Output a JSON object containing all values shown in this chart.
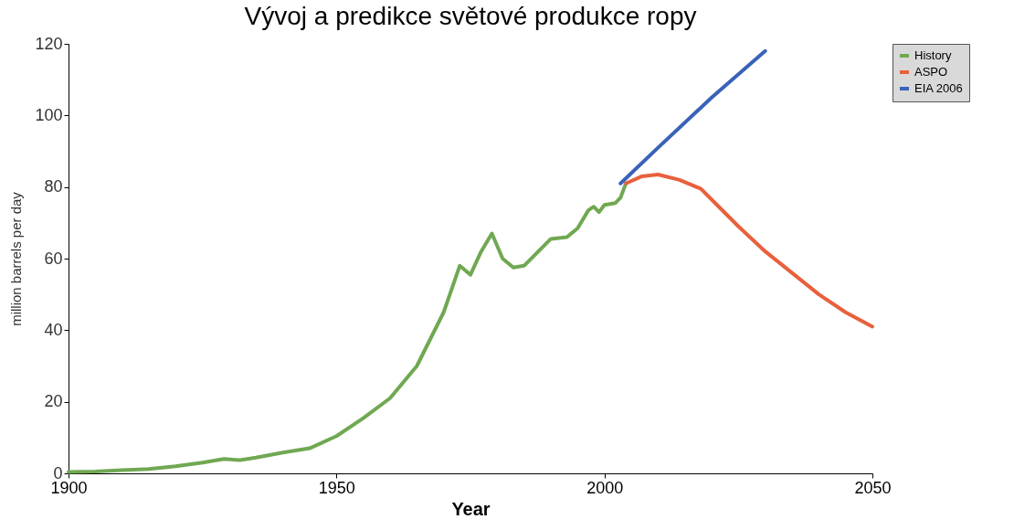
{
  "chart_data": {
    "type": "line",
    "title": "Vývoj a predikce světové produkce ropy",
    "xlabel": "Year",
    "ylabel": "million barrels per day",
    "xlim": [
      1900,
      2050
    ],
    "xticks": [
      1900,
      1950,
      2000,
      2050
    ],
    "ylim": [
      0,
      120
    ],
    "yticks": [
      0,
      20,
      40,
      60,
      80,
      100,
      120
    ],
    "grid": false,
    "legend": "right",
    "series": [
      {
        "name": "History",
        "color": "#70a852",
        "x": [
          1900,
          1905,
          1910,
          1915,
          1920,
          1925,
          1929,
          1932,
          1935,
          1940,
          1945,
          1950,
          1955,
          1960,
          1965,
          1970,
          1973,
          1975,
          1977,
          1979,
          1981,
          1983,
          1985,
          1987,
          1990,
          1993,
          1995,
          1997,
          1998,
          1999,
          2000,
          2002,
          2003,
          2004
        ],
        "values": [
          0.4,
          0.5,
          0.9,
          1.2,
          2,
          3,
          4,
          3.7,
          4.4,
          5.8,
          7,
          10.4,
          15.4,
          21,
          30,
          45,
          58,
          55.5,
          62,
          67,
          60,
          57.5,
          58,
          61,
          65.5,
          66,
          68.5,
          73.5,
          74.5,
          73,
          75,
          75.5,
          77,
          81
        ]
      },
      {
        "name": "ASPO",
        "color": "#e8603c",
        "x": [
          2004,
          2007,
          2010,
          2014,
          2018,
          2021,
          2025,
          2030,
          2035,
          2040,
          2045,
          2050
        ],
        "values": [
          81,
          83,
          83.5,
          82,
          79.5,
          75,
          69,
          62,
          56,
          50,
          45,
          41
        ]
      },
      {
        "name": "EIA 2006",
        "color": "#3a62b8",
        "x": [
          2003,
          2010,
          2020,
          2030
        ],
        "values": [
          81,
          91,
          105,
          118
        ]
      }
    ]
  }
}
